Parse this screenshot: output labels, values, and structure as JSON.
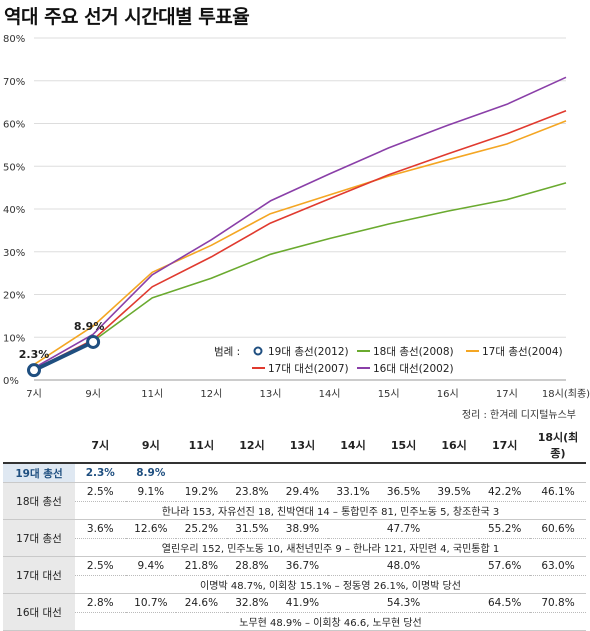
{
  "title": "역대 주요 선거 시간대별 투표율",
  "source": "정리 : 한겨레 디지털뉴스부",
  "legend_label": "범례 :",
  "chart_data": {
    "type": "line",
    "categories": [
      "7시",
      "9시",
      "11시",
      "12시",
      "13시",
      "14시",
      "15시",
      "16시",
      "17시",
      "18시(최종)"
    ],
    "y_ticks": [
      "0%",
      "10%",
      "20%",
      "30%",
      "40%",
      "50%",
      "60%",
      "70%",
      "80%"
    ],
    "ylim": [
      0,
      80
    ],
    "grid": true,
    "legend_position": "bottom-right",
    "series": [
      {
        "name": "19대 총선(2012)",
        "color": "#1f4f80",
        "values": [
          2.3,
          8.9,
          null,
          null,
          null,
          null,
          null,
          null,
          null,
          null
        ],
        "point_labels": [
          "2.3%",
          "8.9%"
        ]
      },
      {
        "name": "18대 총선(2008)",
        "color": "#6aaa2f",
        "values": [
          2.5,
          9.1,
          19.2,
          23.8,
          29.4,
          33.1,
          36.5,
          39.5,
          42.2,
          46.1
        ]
      },
      {
        "name": "17대 총선(2004)",
        "color": "#f4a623",
        "values": [
          3.6,
          12.6,
          25.2,
          31.5,
          38.9,
          43.3,
          47.7,
          51.5,
          55.2,
          60.6
        ]
      },
      {
        "name": "17대 대선(2007)",
        "color": "#e03a2f",
        "values": [
          2.5,
          9.4,
          21.8,
          28.8,
          36.7,
          42.4,
          48.0,
          52.9,
          57.6,
          63.0
        ]
      },
      {
        "name": "16대 대선(2002)",
        "color": "#8a3fa8",
        "values": [
          2.8,
          10.7,
          24.6,
          32.8,
          41.9,
          48.2,
          54.3,
          59.6,
          64.5,
          70.8
        ]
      }
    ]
  },
  "table": {
    "headers": [
      "",
      "7시",
      "9시",
      "11시",
      "12시",
      "13시",
      "14시",
      "15시",
      "16시",
      "17시",
      "18시(최종)"
    ],
    "rows": [
      {
        "label": "19대 총선",
        "cells": [
          "2.3%",
          "8.9%",
          "",
          "",
          "",
          "",
          "",
          "",
          "",
          ""
        ]
      },
      {
        "label": "18대 총선",
        "cells": [
          "2.5%",
          "9.1%",
          "19.2%",
          "23.8%",
          "29.4%",
          "33.1%",
          "36.5%",
          "39.5%",
          "42.2%",
          "46.1%"
        ],
        "note": "한나라 153, 자유선진 18, 친박연대 14 – 통합민주 81, 민주노동 5, 창조한국 3"
      },
      {
        "label": "17대 총선",
        "cells": [
          "3.6%",
          "12.6%",
          "25.2%",
          "31.5%",
          "38.9%",
          "",
          "47.7%",
          "",
          "55.2%",
          "60.6%"
        ],
        "note": "열린우리 152, 민주노동 10, 새천년민주 9 – 한나라 121, 자민련 4, 국민통합 1"
      },
      {
        "label": "17대 대선",
        "cells": [
          "2.5%",
          "9.4%",
          "21.8%",
          "28.8%",
          "36.7%",
          "",
          "48.0%",
          "",
          "57.6%",
          "63.0%"
        ],
        "note": "이명박 48.7%, 이회창 15.1% – 정동영 26.1%, 이명박 당선"
      },
      {
        "label": "16대 대선",
        "cells": [
          "2.8%",
          "10.7%",
          "24.6%",
          "32.8%",
          "41.9%",
          "",
          "54.3%",
          "",
          "64.5%",
          "70.8%"
        ],
        "note": "노무현 48.9% – 이회창 46.6, 노무현 당선"
      }
    ]
  }
}
